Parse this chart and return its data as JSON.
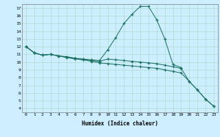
{
  "xlabel": "Humidex (Indice chaleur)",
  "bg_color": "#cceeff",
  "grid_color": "#aaddcc",
  "line_color": "#1a7060",
  "xlim": [
    -0.5,
    23.5
  ],
  "ylim": [
    3.5,
    17.5
  ],
  "series1": {
    "x": [
      0,
      1,
      2,
      3,
      4,
      5,
      6,
      7,
      8,
      9,
      10,
      11,
      12,
      13,
      14,
      15,
      16,
      17,
      18,
      19
    ],
    "y": [
      12.0,
      11.2,
      10.9,
      11.0,
      10.8,
      10.7,
      10.5,
      10.4,
      10.3,
      10.2,
      11.6,
      13.2,
      15.0,
      16.2,
      17.2,
      17.2,
      15.5,
      13.0,
      9.7,
      9.3
    ]
  },
  "series2": {
    "x": [
      0,
      1,
      2,
      3,
      4,
      5,
      6,
      7,
      8,
      9,
      10,
      11,
      12,
      13,
      14,
      15,
      16,
      17,
      18,
      19,
      20,
      21,
      22,
      23
    ],
    "y": [
      12.0,
      11.2,
      10.9,
      11.0,
      10.8,
      10.6,
      10.5,
      10.3,
      10.2,
      10.1,
      10.4,
      10.3,
      10.2,
      10.1,
      10.0,
      9.9,
      9.8,
      9.6,
      9.4,
      9.2,
      7.5,
      6.4,
      5.2,
      4.3
    ]
  },
  "series3": {
    "x": [
      0,
      1,
      2,
      3,
      4,
      5,
      6,
      7,
      8,
      9,
      10,
      11,
      12,
      13,
      14,
      15,
      16,
      17,
      18,
      19,
      20,
      21,
      22,
      23
    ],
    "y": [
      12.0,
      11.2,
      10.9,
      11.0,
      10.8,
      10.6,
      10.4,
      10.3,
      10.1,
      9.9,
      9.8,
      9.7,
      9.6,
      9.5,
      9.4,
      9.3,
      9.2,
      9.0,
      8.8,
      8.6,
      7.5,
      6.4,
      5.2,
      4.3
    ]
  }
}
